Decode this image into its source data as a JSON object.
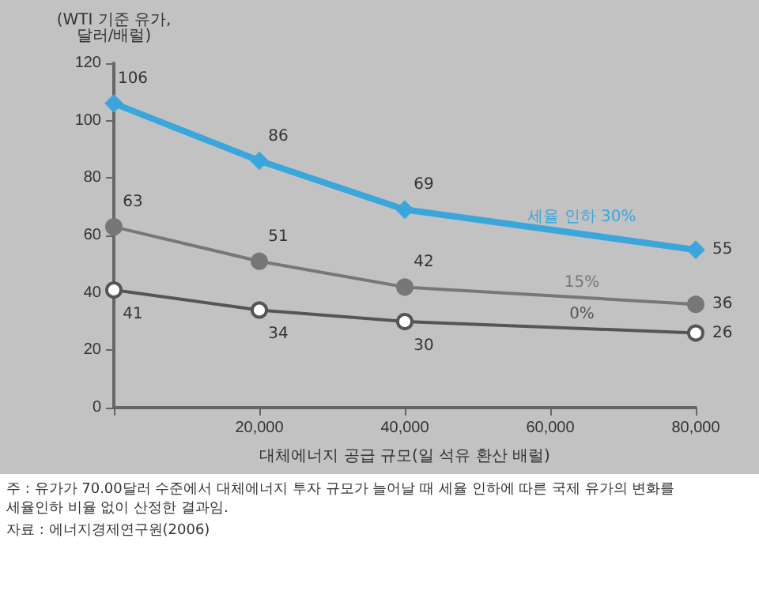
{
  "chart_data": {
    "type": "line",
    "ylabel": "(WTI 기준 유가,\n달러/배럴)",
    "xlabel": "대체에너지 공급 규모(일 석유 환산 배럴)",
    "x": [
      0,
      20000,
      40000,
      80000
    ],
    "series": [
      {
        "name": "세율 인하 30%",
        "color": "#3aa6dc",
        "values": [
          106,
          86,
          69,
          55
        ],
        "marker": "diamond"
      },
      {
        "name": "15%",
        "color": "#777777",
        "values": [
          63,
          51,
          42,
          36
        ],
        "marker": "circle"
      },
      {
        "name": "0%",
        "color": "#555555",
        "values": [
          41,
          34,
          30,
          26
        ],
        "marker": "circle"
      }
    ],
    "xlim": [
      0,
      80000
    ],
    "xticks": [
      {
        "value": 0,
        "label": null
      },
      {
        "value": 20000,
        "label": "20,000"
      },
      {
        "value": 40000,
        "label": "40,000"
      },
      {
        "value": 60000,
        "label": "60,000"
      },
      {
        "value": 80000,
        "label": "80,000"
      }
    ],
    "ylim": [
      0,
      120
    ],
    "yticks": [
      0,
      20,
      40,
      60,
      80,
      100,
      120
    ],
    "grid": false,
    "legend": false,
    "data_labels": true,
    "line_style": "solid",
    "annotations": [
      "주 : 유가가 70.00달러 수준에서 대체에너지 투자 규모가 늘어날 때 세율 인하에 따른 국제 유가의 변화를\n세율인하 비율 없이 산정한 결과임.",
      "자료 : 에너지경제연구원(2006)"
    ]
  }
}
